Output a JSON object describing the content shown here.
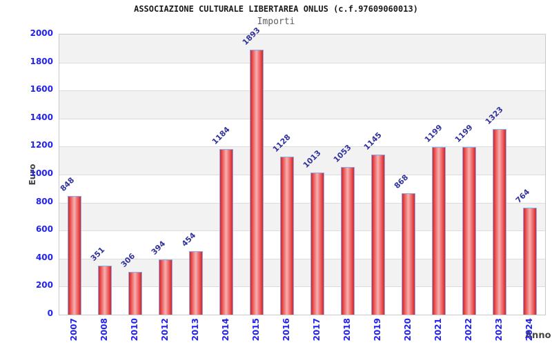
{
  "header": {
    "title": "ASSOCIAZIONE CULTURALE LIBERTAREA ONLUS (c.f.97609060013)",
    "subtitle": "Importi"
  },
  "chart_data": {
    "type": "bar",
    "title": "ASSOCIAZIONE CULTURALE LIBERTAREA ONLUS (c.f.97609060013)",
    "subtitle": "Importi",
    "xlabel": "Anno",
    "ylabel": "Euro",
    "categories": [
      "2007",
      "2008",
      "2010",
      "2012",
      "2013",
      "2014",
      "2015",
      "2016",
      "2017",
      "2018",
      "2019",
      "2020",
      "2021",
      "2022",
      "2023",
      "2024"
    ],
    "values": [
      848,
      351,
      306,
      394,
      454,
      1184,
      1893,
      1128,
      1013,
      1053,
      1145,
      868,
      1199,
      1199,
      1323,
      764
    ],
    "ylim": [
      0,
      2000
    ],
    "yticks": [
      0,
      200,
      400,
      600,
      800,
      1000,
      1200,
      1400,
      1600,
      1800,
      2000
    ],
    "grid": true,
    "legend": false,
    "colors": {
      "bar_fill": "#e01f1f",
      "bar_highlight": "#f8b0b0",
      "bar_border": "#7fb2f0",
      "tick_label": "#2222ee",
      "value_label": "#32329e",
      "axis_title": "#444444",
      "band": "#f2f2f2",
      "gridline": "#dcdcdc"
    }
  }
}
